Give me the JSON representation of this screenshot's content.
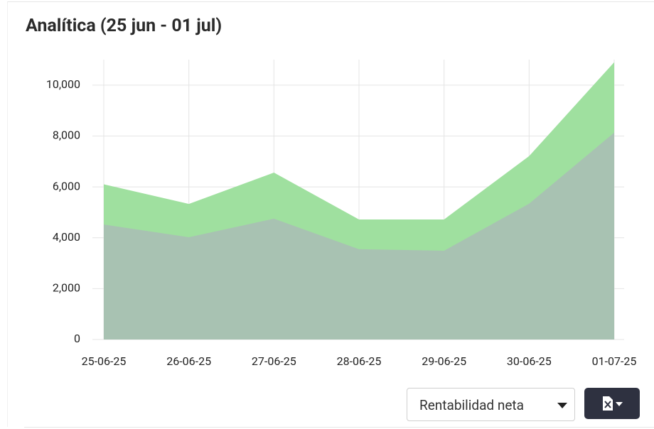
{
  "chart_data": {
    "type": "area",
    "title": "Analítica (25 jun - 01 jul)",
    "categories": [
      "25-06-25",
      "26-06-25",
      "27-06-25",
      "28-06-25",
      "29-06-25",
      "30-06-25",
      "01-07-25"
    ],
    "series": [
      {
        "color": "#9fe09f",
        "values": [
          6100,
          5330,
          6560,
          4720,
          4720,
          7210,
          10900
        ]
      },
      {
        "color": "#a8c2b2",
        "values": [
          4520,
          4020,
          4750,
          3550,
          3490,
          5340,
          8130
        ]
      }
    ],
    "ylim": [
      0,
      11000
    ],
    "yticks": [
      0,
      {
        "value": 2000,
        "label": "2,000"
      },
      {
        "value": 4000,
        "label": "4,000"
      },
      {
        "value": 6000,
        "label": "6,000"
      },
      {
        "value": 8000,
        "label": "8,000"
      },
      {
        "value": 10000,
        "label": "10,000"
      }
    ],
    "grid": true
  },
  "controls": {
    "select": "Rentabilidad neta"
  }
}
